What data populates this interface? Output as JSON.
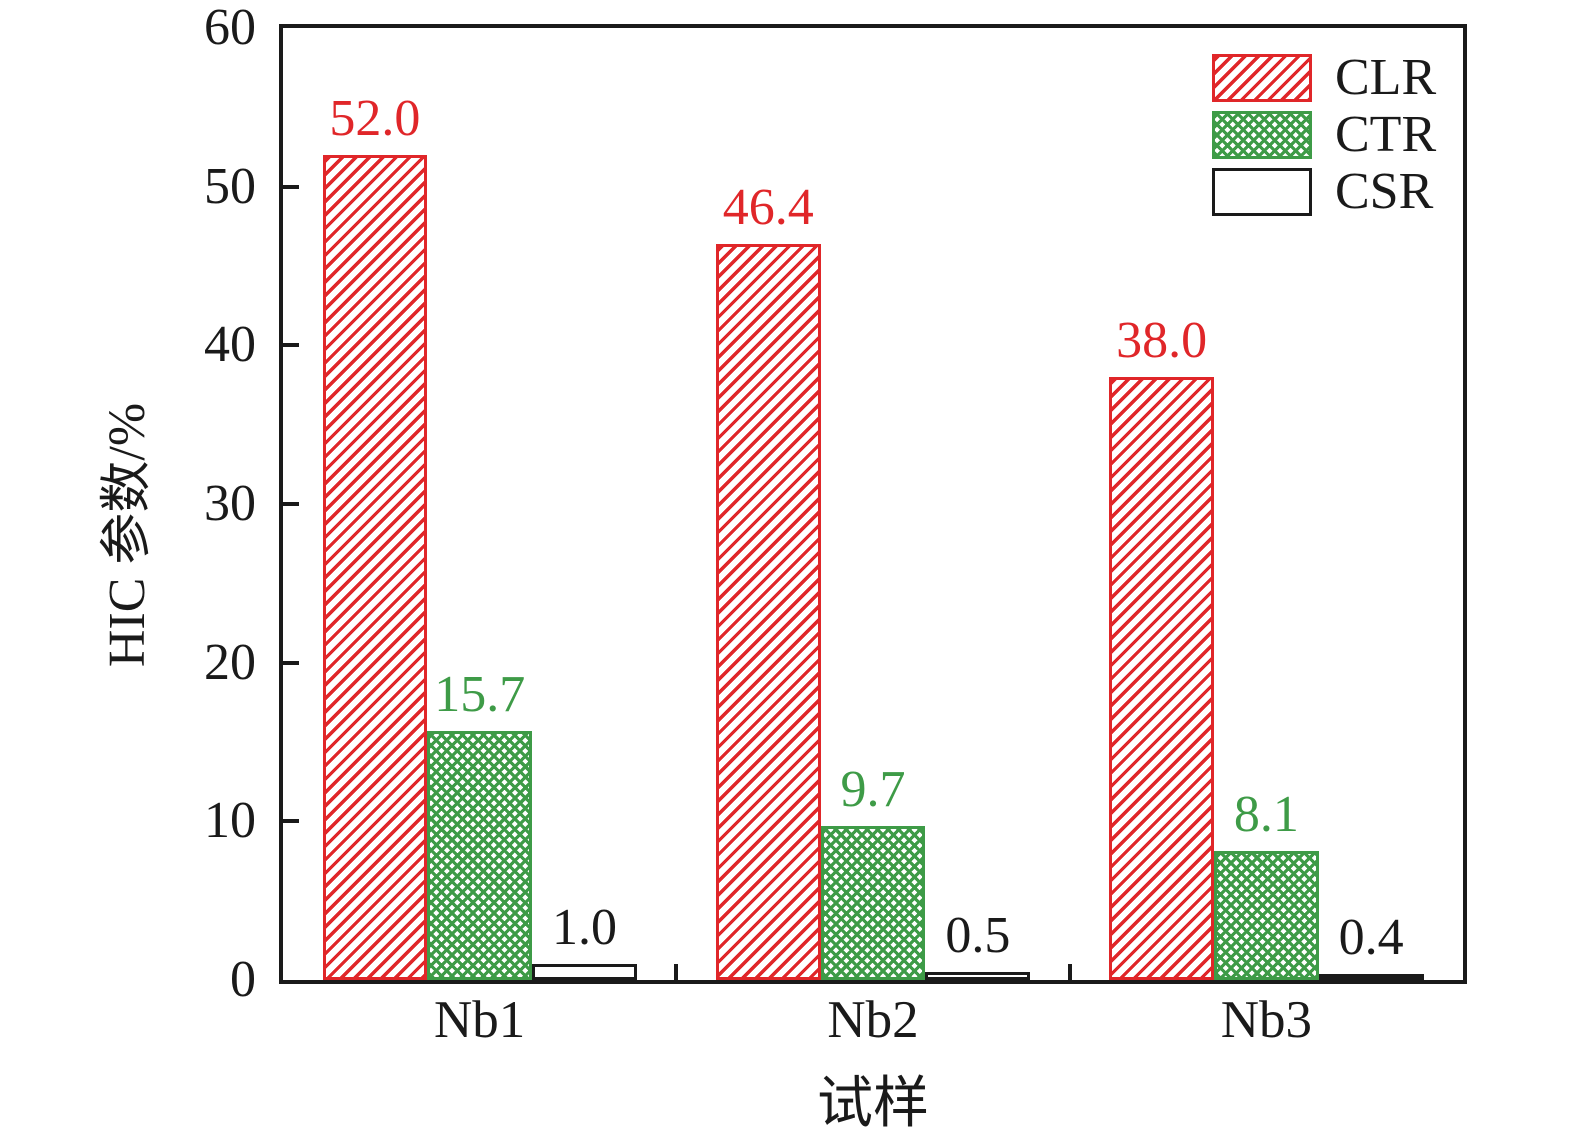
{
  "figure": {
    "background": "#ffffff",
    "axis_color": "#1a1a1a"
  },
  "chart_data": {
    "type": "bar",
    "title": "",
    "xlabel": "试样",
    "ylabel": "HIC 参数/%",
    "categories": [
      "Nb1",
      "Nb2",
      "Nb3"
    ],
    "series": [
      {
        "name": "CLR",
        "values": [
          52.0,
          46.4,
          38.0
        ],
        "labels": [
          "52.0",
          "46.4",
          "38.0"
        ],
        "color": "#e02629",
        "label_color": "#e02629",
        "pattern": "diagonal-hatch"
      },
      {
        "name": "CTR",
        "values": [
          15.7,
          9.7,
          8.1
        ],
        "labels": [
          "15.7",
          "9.7",
          "8.1"
        ],
        "color": "#3e9b47",
        "label_color": "#3e9b47",
        "pattern": "crosshatch"
      },
      {
        "name": "CSR",
        "values": [
          1.0,
          0.5,
          0.4
        ],
        "labels": [
          "1.0",
          "0.5",
          "0.4"
        ],
        "color": "#1a1a1a",
        "label_color": "#1a1a1a",
        "pattern": "plain"
      }
    ],
    "ylim": [
      0,
      60
    ],
    "yticks": [
      0,
      10,
      20,
      30,
      40,
      50,
      60
    ],
    "grid": false,
    "legend_position": "top-right",
    "legend_entries": [
      "CLR",
      "CTR",
      "CSR"
    ]
  }
}
